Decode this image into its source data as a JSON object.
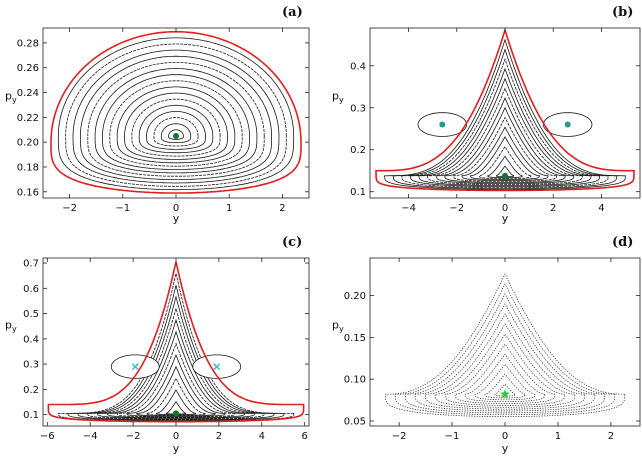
{
  "chart_data": [
    {
      "type": "scatter",
      "panel_label": "(a)",
      "xlabel": "y",
      "ylabel": "p",
      "ylabel_sub": "y",
      "xlim": [
        -2.5,
        2.5
      ],
      "ylim": [
        0.155,
        0.292
      ],
      "xticks": [
        -2,
        -1,
        0,
        1,
        2
      ],
      "xtick_labels": [
        "−2",
        "−1",
        "0",
        "1",
        "2"
      ],
      "yticks": [
        0.16,
        0.18,
        0.2,
        0.22,
        0.24,
        0.26,
        0.28
      ],
      "ytick_labels": [
        "0.16",
        "0.18",
        "0.20",
        "0.22",
        "0.24",
        "0.26",
        "0.28"
      ],
      "boundary": {
        "y0": 0.2,
        "half_width": 2.35,
        "bottom": 0.159,
        "top": 0.289
      },
      "center": {
        "x": 0,
        "y": 0.205
      },
      "n_orbits": 16,
      "fixed_points": [
        {
          "x": 0,
          "y": 0.205,
          "color": "#0a7a28",
          "shape": "dot"
        }
      ]
    },
    {
      "type": "scatter",
      "panel_label": "(b)",
      "xlabel": "y",
      "ylabel": "p",
      "ylabel_sub": "y",
      "xlim": [
        -5.6,
        5.6
      ],
      "ylim": [
        0.085,
        0.49
      ],
      "xticks": [
        -4,
        -2,
        0,
        2,
        4
      ],
      "xtick_labels": [
        "−4",
        "−2",
        "0",
        "2",
        "4"
      ],
      "yticks": [
        0.1,
        0.2,
        0.3,
        0.4
      ],
      "ytick_labels": [
        "0.1",
        "0.2",
        "0.3",
        "0.4"
      ],
      "boundary": {
        "y0": 0.15,
        "half_width": 5.35,
        "bottom": 0.103,
        "top": 0.485
      },
      "center": {
        "x": 0,
        "y": 0.138
      },
      "n_orbits": 14,
      "islands": [
        {
          "x": -2.6,
          "y": 0.26
        },
        {
          "x": 2.6,
          "y": 0.26
        }
      ],
      "fixed_points": [
        {
          "x": 0,
          "y": 0.138,
          "color": "#0a7a28",
          "shape": "dot"
        },
        {
          "x": -2.6,
          "y": 0.26,
          "color": "#1f9e8e",
          "shape": "dot"
        },
        {
          "x": 2.6,
          "y": 0.26,
          "color": "#1f9e8e",
          "shape": "dot"
        }
      ]
    },
    {
      "type": "scatter",
      "panel_label": "(c)",
      "xlabel": "y",
      "ylabel": "p",
      "ylabel_sub": "y",
      "xlim": [
        -6.2,
        6.2
      ],
      "ylim": [
        0.055,
        0.72
      ],
      "xticks": [
        -6,
        -4,
        -2,
        0,
        2,
        4,
        6
      ],
      "xtick_labels": [
        "−6",
        "−4",
        "−2",
        "0",
        "2",
        "4",
        "6"
      ],
      "yticks": [
        0.1,
        0.2,
        0.3,
        0.4,
        0.5,
        0.6,
        0.7
      ],
      "ytick_labels": [
        "0.1",
        "0.2",
        "0.3",
        "0.4",
        "0.5",
        "0.6",
        "0.7"
      ],
      "boundary": {
        "y0": 0.14,
        "half_width": 5.95,
        "bottom": 0.072,
        "top": 0.705
      },
      "center": {
        "x": 0,
        "y": 0.105
      },
      "n_orbits": 12,
      "islands": [
        {
          "x": -1.9,
          "y": 0.29
        },
        {
          "x": 1.9,
          "y": 0.29
        }
      ],
      "fixed_points": [
        {
          "x": 0,
          "y": 0.105,
          "color": "#0a7a28",
          "shape": "dot"
        },
        {
          "x": -1.9,
          "y": 0.29,
          "color": "#40c0d0",
          "shape": "x"
        },
        {
          "x": 1.9,
          "y": 0.29,
          "color": "#40c0d0",
          "shape": "x"
        }
      ]
    },
    {
      "type": "scatter",
      "panel_label": "(d)",
      "xlabel": "y",
      "ylabel": "p",
      "ylabel_sub": "y",
      "xlim": [
        -2.55,
        2.55
      ],
      "ylim": [
        0.044,
        0.245
      ],
      "xticks": [
        -2,
        -1,
        0,
        1,
        2
      ],
      "xtick_labels": [
        "−2",
        "−1",
        "0",
        "1",
        "2"
      ],
      "yticks": [
        0.05,
        0.1,
        0.15,
        0.2
      ],
      "ytick_labels": [
        "0.05",
        "0.10",
        "0.15",
        "0.20"
      ],
      "boundary": {
        "y0": 0.075,
        "half_width": 2.45,
        "bottom": 0.053,
        "top": 0.238
      },
      "center": {
        "x": 0,
        "y": 0.082
      },
      "n_orbits": 12,
      "fixed_points": [
        {
          "x": 0,
          "y": 0.082,
          "color": "#2ec83c",
          "shape": "star"
        }
      ]
    }
  ],
  "style": {
    "boundary_color": "#e0201e",
    "orbit_color": "#1a1a1a",
    "frame_color": "#222222"
  }
}
